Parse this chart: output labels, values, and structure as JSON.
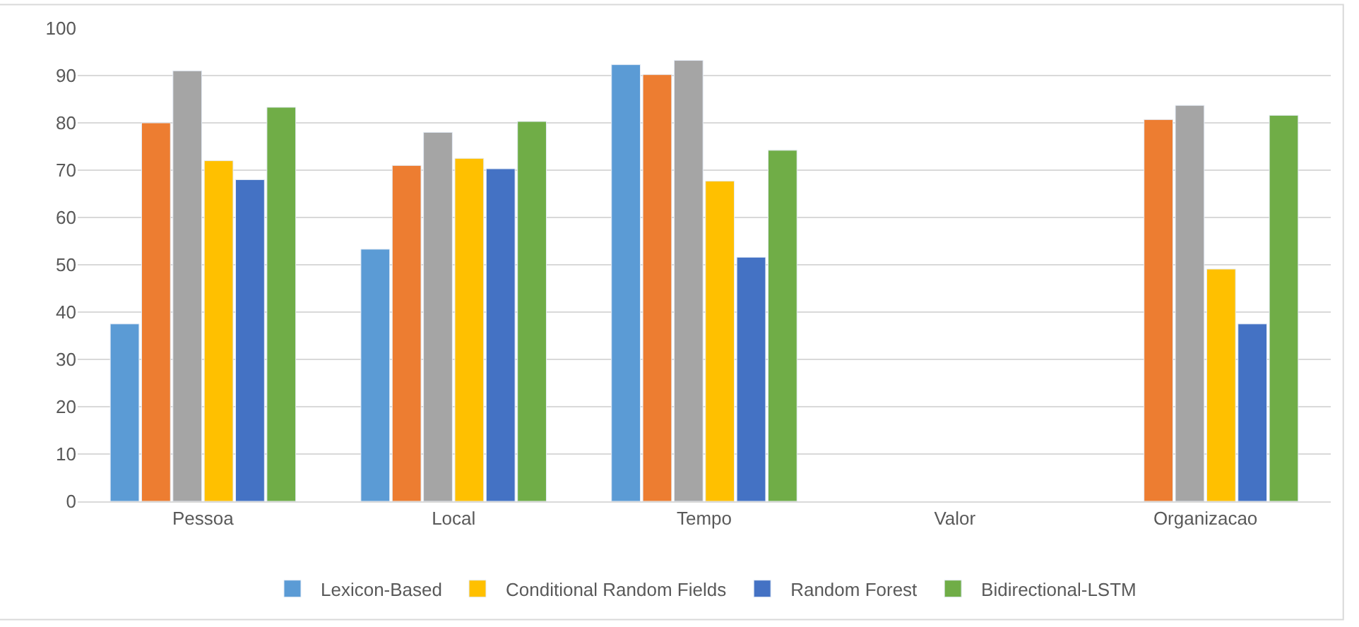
{
  "chart_data": {
    "type": "bar",
    "categories": [
      "Pessoa",
      "Local",
      "Tempo",
      "Valor",
      "Organizacao"
    ],
    "series": [
      {
        "name": "Lexicon-Based",
        "color": "#5b9bd5",
        "values": [
          37.5,
          53.3,
          92.3,
          null,
          null
        ]
      },
      {
        "color": "#ed7d31",
        "values": [
          80,
          71,
          90.2,
          null,
          80.7
        ]
      },
      {
        "color": "#a5a5a5",
        "values": [
          91,
          78,
          93.2,
          null,
          83.7
        ]
      },
      {
        "name": "Conditional Random Fields",
        "color": "#ffc000",
        "values": [
          72,
          72.5,
          67.7,
          null,
          49.1
        ]
      },
      {
        "name": "Random Forest",
        "color": "#4472c4",
        "values": [
          68,
          70.3,
          51.6,
          null,
          37.5
        ]
      },
      {
        "name": "Bidirectional-LSTM",
        "color": "#70ad47",
        "values": [
          83.3,
          80.3,
          74.2,
          null,
          81.6
        ]
      }
    ],
    "ylim": [
      0,
      100
    ],
    "yticks": [
      0,
      10,
      20,
      30,
      40,
      50,
      60,
      70,
      80,
      90,
      100
    ],
    "grid": "y",
    "legend": "bottom"
  }
}
